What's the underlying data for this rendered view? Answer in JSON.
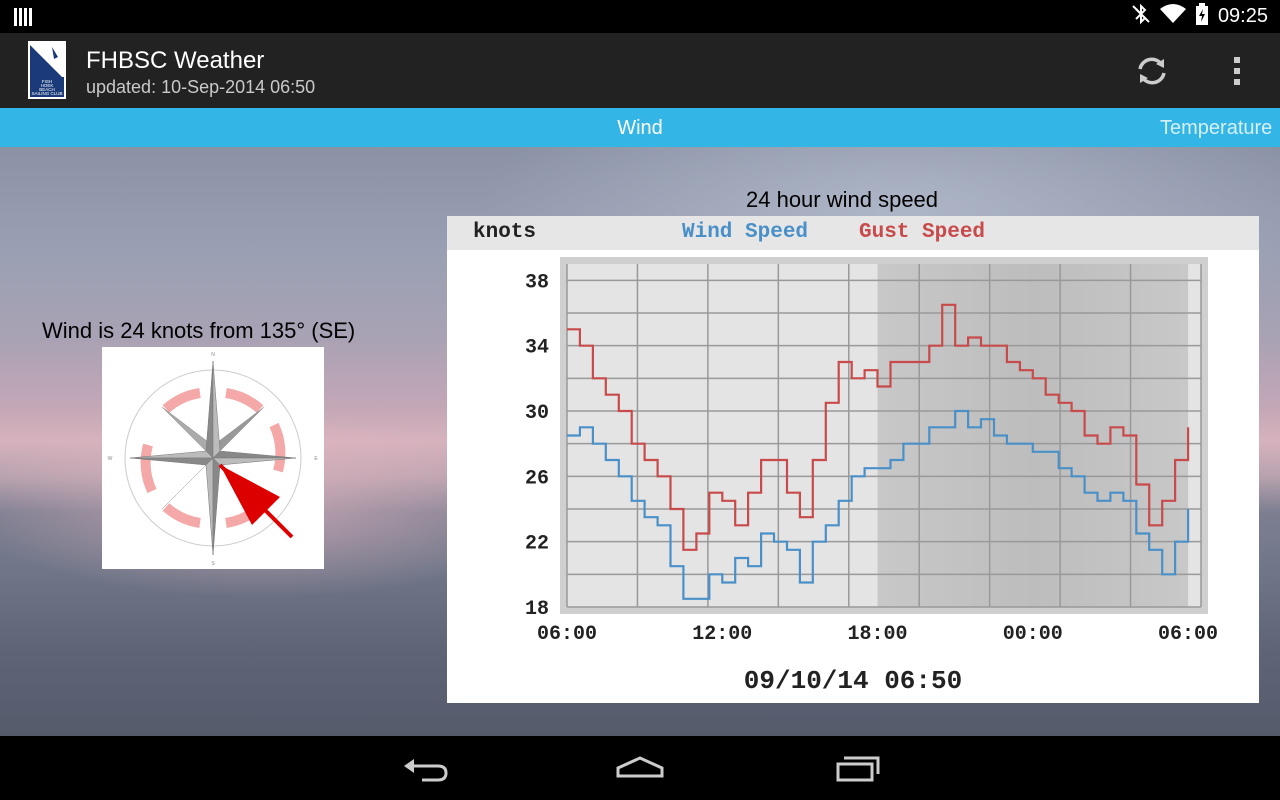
{
  "status_bar": {
    "time": "09:25",
    "icons": [
      "notification-bars-icon",
      "bluetooth-off-icon",
      "wifi-icon",
      "battery-icon"
    ]
  },
  "app_bar": {
    "title": "FHBSC Weather",
    "subtitle": "updated: 10-Sep-2014 06:50",
    "logo_text": "FISH HOEK BEACH SAILING CLUB",
    "actions": [
      "refresh-icon",
      "overflow-menu-icon"
    ]
  },
  "tabs": [
    {
      "label": "Wind",
      "selected": true
    },
    {
      "label": "Temperature",
      "selected": false
    }
  ],
  "wind_panel": {
    "direction_text": "Wind is 24 knots from 135° (SE)",
    "speed_knots": 24,
    "direction_deg": 135
  },
  "chart_panel": {
    "title": "24 hour wind speed",
    "footer": "09/10/14 06:50"
  },
  "chart_data": {
    "type": "line",
    "ylabel": "knots",
    "ylim": [
      18,
      39
    ],
    "yticks": [
      38,
      34,
      30,
      26,
      22,
      18
    ],
    "x_tick_labels": [
      "06:00",
      "12:00",
      "18:00",
      "00:00",
      "06:00"
    ],
    "x_range_hours": [
      0,
      24.5
    ],
    "legend": "top",
    "grid": true,
    "series": [
      {
        "name": "Wind Speed",
        "color": "#4a90c8",
        "x": [
          0,
          0.5,
          1,
          1.5,
          2,
          2.5,
          3,
          3.5,
          4,
          4.5,
          5,
          5.5,
          6,
          6.5,
          7,
          7.5,
          8,
          8.5,
          9,
          9.5,
          10,
          10.5,
          11,
          11.5,
          12,
          12.5,
          13,
          13.5,
          14,
          14.5,
          15,
          15.5,
          16,
          16.5,
          17,
          17.5,
          18,
          18.5,
          19,
          19.5,
          20,
          20.5,
          21,
          21.5,
          22,
          22.5,
          23,
          23.5,
          24
        ],
        "y": [
          28.5,
          29,
          28,
          27,
          26,
          24.5,
          23.5,
          23,
          20.5,
          18.5,
          18.5,
          20,
          19.5,
          21,
          20.5,
          22.5,
          22,
          21.5,
          19.5,
          22,
          23,
          24.5,
          26,
          26.5,
          26.5,
          27,
          28,
          28,
          29,
          29,
          30,
          29,
          29.5,
          28.5,
          28,
          28,
          27.5,
          27.5,
          26.5,
          26,
          25,
          24.5,
          25,
          24.5,
          22.5,
          21.5,
          20,
          22,
          24
        ]
      },
      {
        "name": "Gust Speed",
        "color": "#c84a4a",
        "x": [
          0,
          0.5,
          1,
          1.5,
          2,
          2.5,
          3,
          3.5,
          4,
          4.5,
          5,
          5.5,
          6,
          6.5,
          7,
          7.5,
          8,
          8.5,
          9,
          9.5,
          10,
          10.5,
          11,
          11.5,
          12,
          12.5,
          13,
          13.5,
          14,
          14.5,
          15,
          15.5,
          16,
          16.5,
          17,
          17.5,
          18,
          18.5,
          19,
          19.5,
          20,
          20.5,
          21,
          21.5,
          22,
          22.5,
          23,
          23.5,
          24
        ],
        "y": [
          35,
          34,
          32,
          31,
          30,
          28,
          27,
          26,
          24,
          21.5,
          22.5,
          25,
          24.5,
          23,
          25,
          27,
          27,
          25,
          23.5,
          27,
          30.5,
          33,
          32,
          32.5,
          31.5,
          33,
          33,
          33,
          34,
          36.5,
          34,
          34.5,
          34,
          34,
          33,
          32.5,
          32,
          31,
          30.5,
          30,
          28.5,
          28,
          29,
          28.5,
          25.5,
          23,
          24.5,
          27,
          29
        ]
      }
    ]
  }
}
